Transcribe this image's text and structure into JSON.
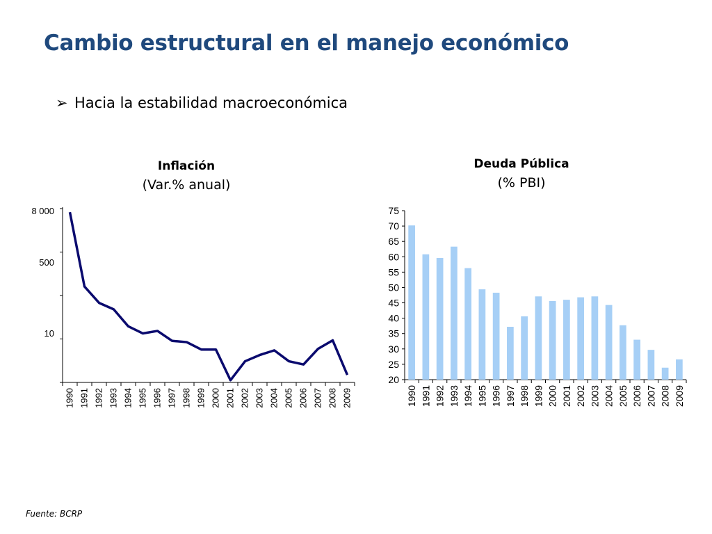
{
  "slide": {
    "title": "Cambio estructural en el manejo económico",
    "bullet_glyph": "➢",
    "bullet_text": "Hacia la estabilidad macroeconómica",
    "source": "Fuente: BCRP"
  },
  "colors": {
    "title": "#1f497d",
    "line": "#0a0a6e",
    "bar": "#a6cff6"
  },
  "chart_data": [
    {
      "type": "line",
      "title": "Inflación",
      "subtitle": "(Var.% anual)",
      "yscale": "log",
      "yticks": [
        {
          "value": 8000,
          "label": "8 000"
        },
        {
          "value": 500,
          "label": "500"
        },
        {
          "value": 10,
          "label": "10"
        }
      ],
      "ylim": [
        -0.2,
        8000
      ],
      "categories": [
        "1990",
        "1991",
        "1992",
        "1993",
        "1994",
        "1995",
        "1996",
        "1997",
        "1998",
        "1999",
        "2000",
        "2001",
        "2002",
        "2003",
        "2004",
        "2005",
        "2006",
        "2007",
        "2008",
        "2009"
      ],
      "values": [
        7650,
        139,
        57,
        40,
        15.4,
        10.2,
        11.8,
        6.5,
        6.0,
        3.7,
        3.7,
        -0.1,
        1.5,
        2.5,
        3.5,
        1.5,
        1.1,
        3.9,
        6.7,
        0.2
      ]
    },
    {
      "type": "bar",
      "title": "Deuda Pública",
      "subtitle": "(% PBI)",
      "ylim": [
        20,
        75
      ],
      "yticks": [
        20,
        25,
        30,
        35,
        40,
        45,
        50,
        55,
        60,
        65,
        70,
        75
      ],
      "categories": [
        "1990",
        "1991",
        "1992",
        "1993",
        "1994",
        "1995",
        "1996",
        "1997",
        "1998",
        "1999",
        "2000",
        "2001",
        "2002",
        "2003",
        "2004",
        "2005",
        "2006",
        "2007",
        "2008",
        "2009"
      ],
      "values": [
        70.2,
        60.8,
        59.6,
        63.3,
        56.3,
        49.4,
        48.3,
        37.2,
        40.6,
        47.1,
        45.6,
        46.0,
        46.8,
        47.1,
        44.3,
        37.7,
        33.0,
        29.7,
        23.9,
        26.6
      ]
    }
  ]
}
